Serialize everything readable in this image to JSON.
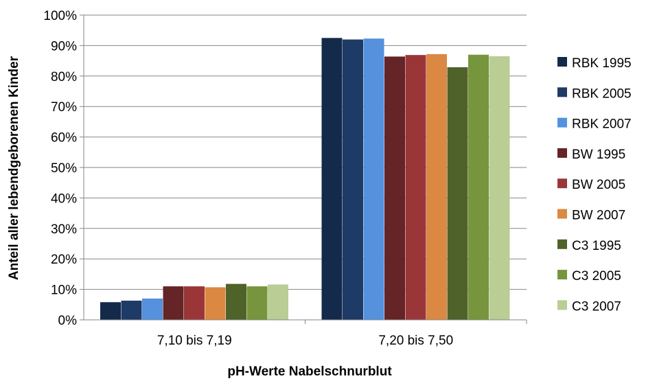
{
  "chart_data": {
    "type": "bar",
    "xlabel": "pH-Werte Nabelschnurblut",
    "ylabel": "Anteil aller lebendgeborenen Kinder",
    "ylim": [
      0,
      100
    ],
    "yticks": [
      "0%",
      "10%",
      "20%",
      "30%",
      "40%",
      "50%",
      "60%",
      "70%",
      "80%",
      "90%",
      "100%"
    ],
    "grid": true,
    "legend_position": "right",
    "categories": [
      "7,10 bis 7,19",
      "7,20 bis 7,50"
    ],
    "series": [
      {
        "name": "RBK 1995",
        "color": "#142a4b",
        "values": [
          5.8,
          92.5
        ]
      },
      {
        "name": "RBK 2005",
        "color": "#1e3a66",
        "values": [
          6.3,
          92.0
        ]
      },
      {
        "name": "RBK 2007",
        "color": "#5591dc",
        "values": [
          7.0,
          92.3
        ]
      },
      {
        "name": "BW 1995",
        "color": "#652425",
        "values": [
          11.0,
          86.4
        ]
      },
      {
        "name": "BW 2005",
        "color": "#9a3638",
        "values": [
          11.0,
          86.9
        ]
      },
      {
        "name": "BW 2007",
        "color": "#db8843",
        "values": [
          10.7,
          87.2
        ]
      },
      {
        "name": "C3 1995",
        "color": "#4f6229",
        "values": [
          11.8,
          82.9
        ]
      },
      {
        "name": "C3 2005",
        "color": "#77953c",
        "values": [
          11.0,
          87.0
        ]
      },
      {
        "name": "C3 2007",
        "color": "#b9cd94",
        "values": [
          11.6,
          86.5
        ]
      }
    ]
  }
}
